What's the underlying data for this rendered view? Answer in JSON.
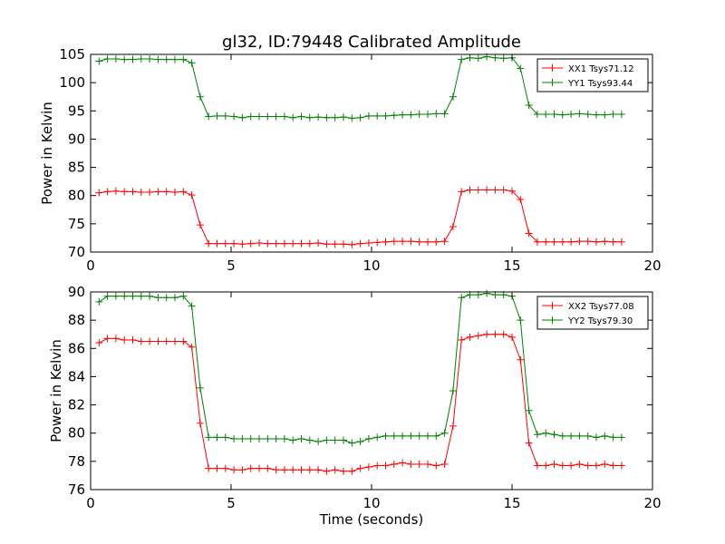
{
  "figure": {
    "title": "gl32, ID:79448 Calibrated Amplitude"
  },
  "chart_data": [
    {
      "type": "line",
      "title": "gl32, ID:79448 Calibrated Amplitude",
      "xlabel": "",
      "ylabel": "Power in Kelvin",
      "xlim": [
        0,
        20
      ],
      "ylim": [
        70,
        105
      ],
      "x_ticks": [
        0,
        5,
        10,
        15,
        20
      ],
      "y_ticks": [
        70,
        75,
        80,
        85,
        90,
        95,
        100,
        105
      ],
      "grid": false,
      "legend_position": "top-right",
      "x": [
        0.3,
        0.6,
        0.9,
        1.2,
        1.5,
        1.8,
        2.1,
        2.4,
        2.7,
        3.0,
        3.3,
        3.6,
        3.9,
        4.2,
        4.5,
        4.8,
        5.1,
        5.4,
        5.7,
        6.0,
        6.3,
        6.6,
        6.9,
        7.2,
        7.5,
        7.8,
        8.1,
        8.4,
        8.7,
        9.0,
        9.3,
        9.6,
        9.9,
        10.2,
        10.5,
        10.8,
        11.1,
        11.4,
        11.7,
        12.0,
        12.3,
        12.6,
        12.9,
        13.2,
        13.5,
        13.8,
        14.1,
        14.4,
        14.7,
        15.0,
        15.3,
        15.6,
        15.9,
        16.2,
        16.5,
        16.8,
        17.1,
        17.4,
        17.7,
        18.0,
        18.3,
        18.6,
        18.9
      ],
      "series": [
        {
          "name": "XX1 Tsys71.12",
          "color": "#ff0000",
          "values": [
            80.5,
            80.7,
            80.8,
            80.7,
            80.7,
            80.6,
            80.6,
            80.7,
            80.7,
            80.6,
            80.7,
            80.1,
            74.8,
            71.5,
            71.5,
            71.5,
            71.5,
            71.4,
            71.5,
            71.6,
            71.5,
            71.5,
            71.5,
            71.5,
            71.5,
            71.5,
            71.6,
            71.4,
            71.4,
            71.4,
            71.3,
            71.5,
            71.6,
            71.7,
            71.8,
            71.9,
            71.9,
            71.9,
            71.8,
            71.8,
            71.8,
            71.9,
            74.5,
            80.7,
            81.0,
            81.0,
            81.0,
            81.0,
            81.0,
            80.8,
            79.3,
            73.3,
            71.8,
            71.8,
            71.8,
            71.8,
            71.8,
            71.9,
            71.9,
            71.8,
            71.9,
            71.8,
            71.8
          ]
        },
        {
          "name": "YY1 Tsys93.44",
          "color": "#008000",
          "values": [
            103.8,
            104.2,
            104.2,
            104.1,
            104.1,
            104.2,
            104.2,
            104.1,
            104.1,
            104.1,
            104.1,
            103.5,
            97.5,
            94.0,
            94.1,
            94.1,
            94.0,
            93.8,
            94.0,
            94.0,
            94.0,
            94.0,
            94.0,
            93.8,
            94.0,
            93.8,
            93.9,
            93.8,
            93.8,
            93.9,
            93.7,
            93.8,
            94.1,
            94.1,
            94.1,
            94.2,
            94.3,
            94.3,
            94.4,
            94.4,
            94.5,
            94.5,
            97.5,
            104.1,
            104.4,
            104.3,
            104.6,
            104.4,
            104.3,
            104.4,
            102.5,
            96.0,
            94.4,
            94.4,
            94.4,
            94.3,
            94.4,
            94.5,
            94.4,
            94.3,
            94.3,
            94.4,
            94.4
          ]
        }
      ]
    },
    {
      "type": "line",
      "title": "",
      "xlabel": "Time (seconds)",
      "ylabel": "Power in Kelvin",
      "xlim": [
        0,
        20
      ],
      "ylim": [
        76,
        90
      ],
      "x_ticks": [
        0,
        5,
        10,
        15,
        20
      ],
      "y_ticks": [
        76,
        78,
        80,
        82,
        84,
        86,
        88,
        90
      ],
      "grid": false,
      "legend_position": "top-right",
      "x": [
        0.3,
        0.6,
        0.9,
        1.2,
        1.5,
        1.8,
        2.1,
        2.4,
        2.7,
        3.0,
        3.3,
        3.6,
        3.9,
        4.2,
        4.5,
        4.8,
        5.1,
        5.4,
        5.7,
        6.0,
        6.3,
        6.6,
        6.9,
        7.2,
        7.5,
        7.8,
        8.1,
        8.4,
        8.7,
        9.0,
        9.3,
        9.6,
        9.9,
        10.2,
        10.5,
        10.8,
        11.1,
        11.4,
        11.7,
        12.0,
        12.3,
        12.6,
        12.9,
        13.2,
        13.5,
        13.8,
        14.1,
        14.4,
        14.7,
        15.0,
        15.3,
        15.6,
        15.9,
        16.2,
        16.5,
        16.8,
        17.1,
        17.4,
        17.7,
        18.0,
        18.3,
        18.6,
        18.9
      ],
      "series": [
        {
          "name": "XX2 Tsys77.08",
          "color": "#ff0000",
          "values": [
            86.4,
            86.7,
            86.7,
            86.6,
            86.6,
            86.5,
            86.5,
            86.5,
            86.5,
            86.5,
            86.5,
            86.1,
            80.7,
            77.5,
            77.5,
            77.5,
            77.4,
            77.4,
            77.5,
            77.5,
            77.5,
            77.4,
            77.4,
            77.4,
            77.4,
            77.4,
            77.4,
            77.3,
            77.4,
            77.3,
            77.3,
            77.5,
            77.6,
            77.7,
            77.7,
            77.8,
            77.9,
            77.8,
            77.8,
            77.8,
            77.7,
            77.8,
            80.5,
            86.6,
            86.8,
            86.9,
            87.0,
            87.0,
            87.0,
            86.8,
            85.2,
            79.3,
            77.7,
            77.7,
            77.8,
            77.7,
            77.7,
            77.8,
            77.7,
            77.7,
            77.8,
            77.7,
            77.7
          ]
        },
        {
          "name": "YY2 Tsys79.30",
          "color": "#008000",
          "values": [
            89.3,
            89.7,
            89.7,
            89.7,
            89.7,
            89.7,
            89.7,
            89.6,
            89.6,
            89.6,
            89.7,
            89.0,
            83.2,
            79.7,
            79.7,
            79.7,
            79.6,
            79.6,
            79.6,
            79.6,
            79.6,
            79.6,
            79.6,
            79.5,
            79.6,
            79.5,
            79.4,
            79.5,
            79.5,
            79.5,
            79.3,
            79.4,
            79.6,
            79.7,
            79.8,
            79.8,
            79.8,
            79.8,
            79.8,
            79.8,
            79.8,
            80.0,
            83.0,
            89.6,
            89.8,
            89.8,
            89.9,
            89.8,
            89.8,
            89.7,
            88.0,
            81.6,
            79.9,
            80.0,
            79.9,
            79.8,
            79.8,
            79.8,
            79.8,
            79.7,
            79.8,
            79.7,
            79.7
          ]
        }
      ]
    }
  ]
}
